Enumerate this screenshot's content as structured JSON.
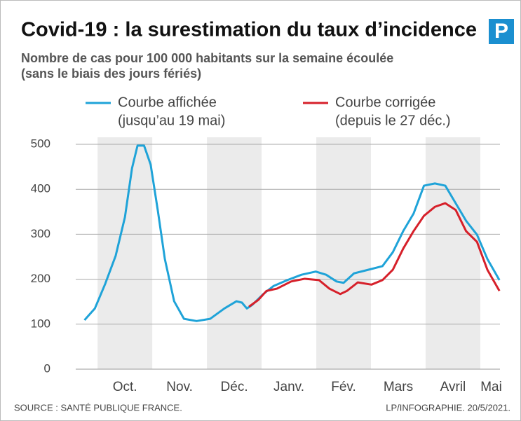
{
  "chart_data": {
    "type": "line",
    "title": "Covid-19 : la surestimation du taux d’incidence",
    "logo": "P",
    "subtitle": [
      "Nombre de cas pour 100 000 habitants sur la semaine écoulée",
      "(sans le biais des jours fériés)"
    ],
    "source": "SOURCE : SANTÉ PUBLIQUE FRANCE.",
    "credit": "LP/INFOGRAPHIE.  20/5/2021.",
    "xlim": [
      -0.9,
      6.86
    ],
    "xticks": [
      {
        "value": 0,
        "label": "Oct."
      },
      {
        "value": 1,
        "label": "Nov."
      },
      {
        "value": 2,
        "label": "Déc."
      },
      {
        "value": 3,
        "label": "Janv."
      },
      {
        "value": 4,
        "label": "Fév."
      },
      {
        "value": 5,
        "label": "Mars"
      },
      {
        "value": 6,
        "label": "Avril"
      },
      {
        "value": 6.7,
        "label": "Mai"
      }
    ],
    "ylim": [
      0,
      500
    ],
    "yticks": [
      0,
      100,
      200,
      300,
      400,
      500
    ],
    "grid": true,
    "series": [
      {
        "name": "Courbe affichée",
        "description": "(jusqu’au 19 mai)",
        "color": "#1fa3d8",
        "x": [
          -0.74,
          -0.55,
          -0.36,
          -0.17,
          0,
          0.13,
          0.23,
          0.35,
          0.47,
          0.6,
          0.73,
          0.9,
          1.08,
          1.31,
          1.56,
          1.82,
          2.04,
          2.14,
          2.23,
          2.33,
          2.53,
          2.72,
          2.97,
          3.23,
          3.49,
          3.68,
          3.87,
          4.0,
          4.19,
          4.45,
          4.71,
          4.9,
          5.09,
          5.28,
          5.47,
          5.67,
          5.86,
          6.05,
          6.24,
          6.44,
          6.63,
          6.85
        ],
        "values": [
          109,
          135,
          190,
          252,
          338,
          447,
          497,
          497,
          455,
          354,
          245,
          151,
          112,
          107,
          112,
          135,
          151,
          148,
          135,
          143,
          167,
          185,
          198,
          210,
          217,
          210,
          195,
          192,
          213,
          221,
          229,
          260,
          307,
          346,
          408,
          413,
          408,
          369,
          330,
          299,
          245,
          198
        ]
      },
      {
        "name": "Courbe corrigée",
        "description": "(depuis le 27 déc.)",
        "color": "#d6202a",
        "x": [
          2.27,
          2.44,
          2.59,
          2.78,
          3.04,
          3.29,
          3.55,
          3.74,
          3.94,
          4.06,
          4.26,
          4.51,
          4.71,
          4.9,
          5.09,
          5.28,
          5.47,
          5.67,
          5.86,
          6.05,
          6.24,
          6.44,
          6.63,
          6.85
        ],
        "values": [
          139,
          154,
          174,
          179,
          195,
          201,
          198,
          179,
          167,
          174,
          193,
          188,
          198,
          221,
          268,
          307,
          341,
          361,
          369,
          354,
          307,
          283,
          221,
          174
        ]
      }
    ]
  }
}
